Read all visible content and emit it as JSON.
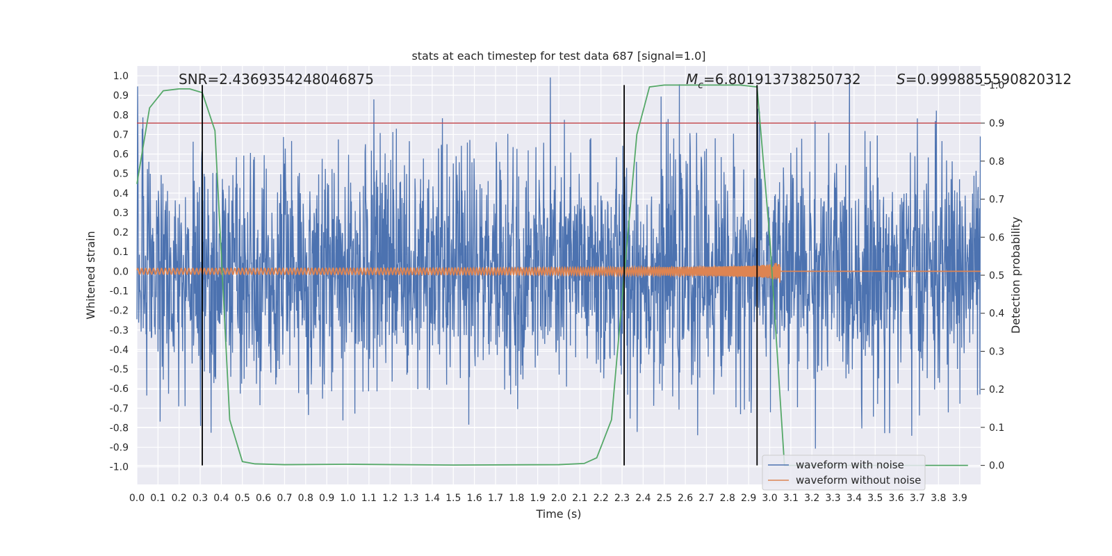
{
  "chart_data": {
    "type": "line",
    "title": "stats at each timestep for test data 687 [signal=1.0]",
    "xlabel": "Time (s)",
    "ylabel": "Whitened strain",
    "y2label": "Detection probability",
    "xlim": [
      0.0,
      4.0
    ],
    "ylim": [
      -1.09,
      1.05
    ],
    "y2lim": [
      -0.05,
      1.05
    ],
    "x_ticks": [
      "0.0",
      "0.1",
      "0.2",
      "0.3",
      "0.4",
      "0.5",
      "0.6",
      "0.7",
      "0.8",
      "0.9",
      "1.0",
      "1.1",
      "1.2",
      "1.3",
      "1.4",
      "1.5",
      "1.6",
      "1.7",
      "1.8",
      "1.9",
      "2.0",
      "2.1",
      "2.2",
      "2.3",
      "2.4",
      "2.5",
      "2.6",
      "2.7",
      "2.8",
      "2.9",
      "3.0",
      "3.1",
      "3.2",
      "3.3",
      "3.4",
      "3.5",
      "3.6",
      "3.7",
      "3.8",
      "3.9"
    ],
    "y_ticks": [
      "1.0",
      "0.9",
      "0.8",
      "0.7",
      "0.6",
      "0.5",
      "0.4",
      "0.3",
      "0.2",
      "0.1",
      "0.0",
      "-0.1",
      "-0.2",
      "-0.3",
      "-0.4",
      "-0.5",
      "-0.6",
      "-0.7",
      "-0.8",
      "-0.9",
      "-1.0"
    ],
    "y2_ticks": [
      "1.0",
      "0.9",
      "0.8",
      "0.7",
      "0.6",
      "0.5",
      "0.4",
      "0.3",
      "0.2",
      "0.1",
      "0.0"
    ],
    "grid": true,
    "legend_position": "bottom-right",
    "annotations": {
      "snr": "SNR=2.4369354248046875",
      "mc_symbol": "M",
      "mc_sub": "c",
      "mc_value": "=6.801913738250732",
      "s_symbol": "S",
      "s_value": "=0.9998855590820312"
    },
    "series": [
      {
        "name": "waveform with noise",
        "color": "#4c72b0",
        "noise_seed": 687,
        "typical_amplitude": 0.3,
        "max_peak": 1.0
      },
      {
        "name": "waveform without noise",
        "color": "#dd8452",
        "chirp_start_amplitude": 0.015,
        "chirp_end_time": 3.05,
        "chirp_end_amplitude": 0.08
      },
      {
        "name": "detection probability",
        "color": "#55a868",
        "axis": "right",
        "x": [
          0.0,
          0.06,
          0.125,
          0.2,
          0.25,
          0.31,
          0.37,
          0.44,
          0.5,
          0.56,
          0.7,
          1.0,
          1.5,
          2.0,
          2.12,
          2.18,
          2.25,
          2.31,
          2.37,
          2.43,
          2.5,
          2.7,
          2.86,
          2.94,
          3.0,
          3.07,
          3.2,
          3.5,
          3.94
        ],
        "y": [
          0.74,
          0.94,
          0.985,
          0.99,
          0.99,
          0.98,
          0.88,
          0.12,
          0.01,
          0.004,
          0.002,
          0.003,
          0.001,
          0.002,
          0.005,
          0.02,
          0.12,
          0.5,
          0.87,
          0.995,
          1.0,
          1.0,
          1.0,
          0.995,
          0.6,
          0.0,
          0.0,
          0.0,
          0.0
        ]
      }
    ],
    "threshold": {
      "value": 0.9,
      "axis": "right",
      "color": "#c44e52"
    },
    "vlines": [
      0.31,
      2.31,
      2.94
    ],
    "vline_range": [
      0.0,
      1.0
    ],
    "vline_color": "#000000"
  }
}
